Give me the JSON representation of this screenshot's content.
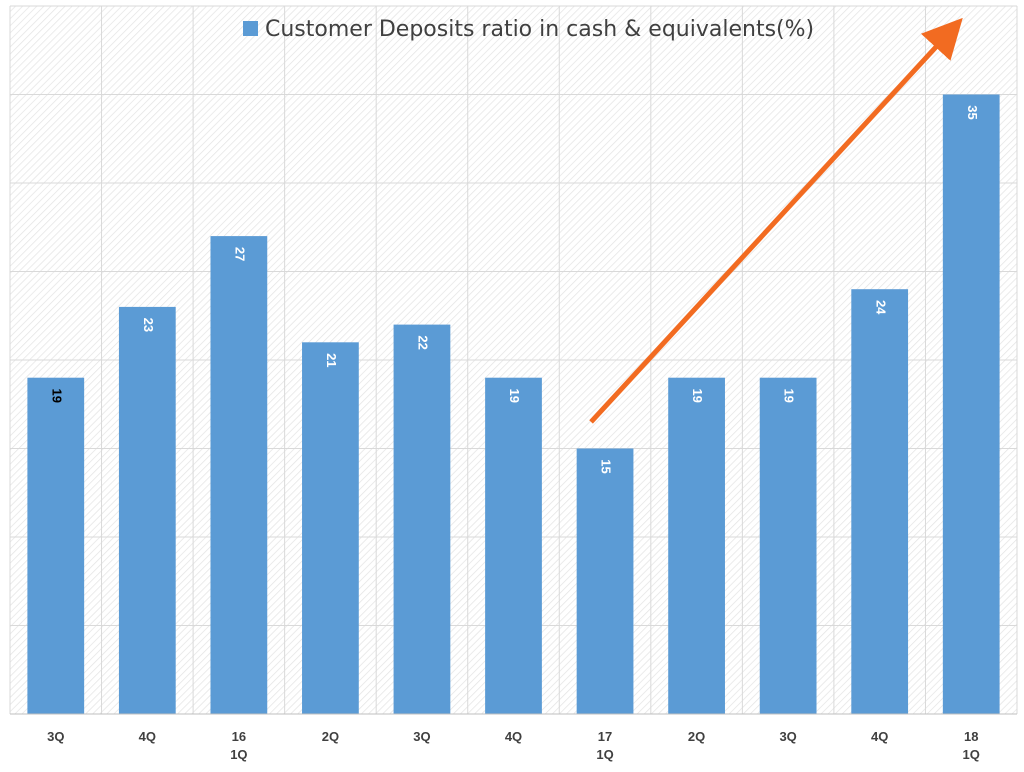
{
  "chart_data": {
    "type": "bar",
    "categories": [
      [
        "3Q"
      ],
      [
        "4Q"
      ],
      [
        "16",
        "1Q"
      ],
      [
        "2Q"
      ],
      [
        "3Q"
      ],
      [
        "4Q"
      ],
      [
        "17",
        "1Q"
      ],
      [
        "2Q"
      ],
      [
        "3Q"
      ],
      [
        "4Q"
      ],
      [
        "18",
        "1Q"
      ]
    ],
    "series": [
      {
        "name": "Customer Deposits ratio in cash & equivalents(%)",
        "values": [
          19,
          23,
          27,
          21,
          22,
          19,
          15,
          19,
          19,
          24,
          35
        ],
        "color": "#5b9bd5"
      }
    ],
    "label_colors": [
      "#000000",
      "#ffffff",
      "#ffffff",
      "#ffffff",
      "#ffffff",
      "#ffffff",
      "#ffffff",
      "#ffffff",
      "#ffffff",
      "#ffffff",
      "#ffffff"
    ],
    "ylim": [
      0,
      40
    ],
    "grid": true,
    "legend_position": "top-center",
    "annotation": {
      "type": "arrow",
      "color": "#f26b21",
      "from": {
        "category_index": 6,
        "value": 16.5
      },
      "to": {
        "category_index": 10,
        "value": 38.5
      }
    }
  }
}
